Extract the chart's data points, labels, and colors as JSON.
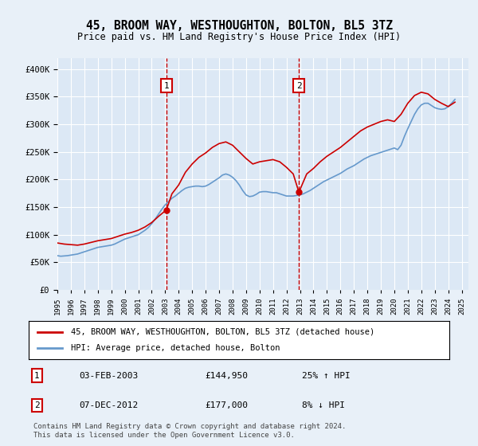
{
  "title": "45, BROOM WAY, WESTHOUGHTON, BOLTON, BL5 3TZ",
  "subtitle": "Price paid vs. HM Land Registry's House Price Index (HPI)",
  "ylabel_ticks": [
    "£0",
    "£50K",
    "£100K",
    "£150K",
    "£200K",
    "£250K",
    "£300K",
    "£350K",
    "£400K"
  ],
  "ytick_values": [
    0,
    50000,
    100000,
    150000,
    200000,
    250000,
    300000,
    350000,
    400000
  ],
  "ylim": [
    0,
    420000
  ],
  "xlim_start": 1995.0,
  "xlim_end": 2025.5,
  "background_color": "#e8f0f8",
  "plot_bg_color": "#dce8f5",
  "grid_color": "#ffffff",
  "marker1_x": 2003.09,
  "marker1_y": 144950,
  "marker1_label": "1",
  "marker1_date": "03-FEB-2003",
  "marker1_price": "£144,950",
  "marker1_hpi": "25% ↑ HPI",
  "marker2_x": 2012.92,
  "marker2_y": 177000,
  "marker2_label": "2",
  "marker2_date": "07-DEC-2012",
  "marker2_price": "£177,000",
  "marker2_hpi": "8% ↓ HPI",
  "red_line_color": "#cc0000",
  "blue_line_color": "#6699cc",
  "legend_label_red": "45, BROOM WAY, WESTHOUGHTON, BOLTON, BL5 3TZ (detached house)",
  "legend_label_blue": "HPI: Average price, detached house, Bolton",
  "footer_line1": "Contains HM Land Registry data © Crown copyright and database right 2024.",
  "footer_line2": "This data is licensed under the Open Government Licence v3.0.",
  "hpi_data": {
    "years": [
      1995.0,
      1995.25,
      1995.5,
      1995.75,
      1996.0,
      1996.25,
      1996.5,
      1996.75,
      1997.0,
      1997.25,
      1997.5,
      1997.75,
      1998.0,
      1998.25,
      1998.5,
      1998.75,
      1999.0,
      1999.25,
      1999.5,
      1999.75,
      2000.0,
      2000.25,
      2000.5,
      2000.75,
      2001.0,
      2001.25,
      2001.5,
      2001.75,
      2002.0,
      2002.25,
      2002.5,
      2002.75,
      2003.0,
      2003.25,
      2003.5,
      2003.75,
      2004.0,
      2004.25,
      2004.5,
      2004.75,
      2005.0,
      2005.25,
      2005.5,
      2005.75,
      2006.0,
      2006.25,
      2006.5,
      2006.75,
      2007.0,
      2007.25,
      2007.5,
      2007.75,
      2008.0,
      2008.25,
      2008.5,
      2008.75,
      2009.0,
      2009.25,
      2009.5,
      2009.75,
      2010.0,
      2010.25,
      2010.5,
      2010.75,
      2011.0,
      2011.25,
      2011.5,
      2011.75,
      2012.0,
      2012.25,
      2012.5,
      2012.75,
      2013.0,
      2013.25,
      2013.5,
      2013.75,
      2014.0,
      2014.25,
      2014.5,
      2014.75,
      2015.0,
      2015.25,
      2015.5,
      2015.75,
      2016.0,
      2016.25,
      2016.5,
      2016.75,
      2017.0,
      2017.25,
      2017.5,
      2017.75,
      2018.0,
      2018.25,
      2018.5,
      2018.75,
      2019.0,
      2019.25,
      2019.5,
      2019.75,
      2020.0,
      2020.25,
      2020.5,
      2020.75,
      2021.0,
      2021.25,
      2021.5,
      2021.75,
      2022.0,
      2022.25,
      2022.5,
      2022.75,
      2023.0,
      2023.25,
      2023.5,
      2023.75,
      2024.0,
      2024.25,
      2024.5
    ],
    "values": [
      62000,
      61000,
      61500,
      62000,
      63000,
      64000,
      65000,
      67000,
      69000,
      71000,
      73000,
      75000,
      77000,
      78000,
      79000,
      80000,
      81000,
      83000,
      86000,
      89000,
      92000,
      94000,
      96000,
      98000,
      100000,
      104000,
      108000,
      113000,
      120000,
      128000,
      137000,
      146000,
      154000,
      160000,
      166000,
      170000,
      175000,
      180000,
      184000,
      186000,
      187000,
      188000,
      188000,
      187000,
      188000,
      191000,
      195000,
      199000,
      203000,
      208000,
      210000,
      208000,
      204000,
      198000,
      190000,
      180000,
      172000,
      169000,
      170000,
      173000,
      177000,
      178000,
      178000,
      177000,
      176000,
      176000,
      174000,
      172000,
      170000,
      170000,
      170000,
      171000,
      172000,
      174000,
      177000,
      180000,
      184000,
      188000,
      192000,
      196000,
      199000,
      202000,
      205000,
      208000,
      211000,
      215000,
      219000,
      222000,
      225000,
      229000,
      233000,
      237000,
      240000,
      243000,
      245000,
      247000,
      249000,
      251000,
      253000,
      255000,
      257000,
      254000,
      262000,
      278000,
      292000,
      305000,
      318000,
      328000,
      335000,
      338000,
      338000,
      334000,
      330000,
      328000,
      327000,
      328000,
      332000,
      338000,
      345000
    ]
  },
  "red_data": {
    "years": [
      1995.0,
      1995.5,
      1996.0,
      1996.5,
      1997.0,
      1997.5,
      1998.0,
      1998.5,
      1999.0,
      1999.5,
      2000.0,
      2000.5,
      2001.0,
      2001.5,
      2002.0,
      2002.5,
      2003.09,
      2003.5,
      2004.0,
      2004.5,
      2005.0,
      2005.5,
      2006.0,
      2006.5,
      2007.0,
      2007.5,
      2008.0,
      2008.5,
      2009.0,
      2009.5,
      2010.0,
      2010.5,
      2011.0,
      2011.5,
      2012.0,
      2012.5,
      2012.92,
      2013.5,
      2014.0,
      2014.5,
      2015.0,
      2015.5,
      2016.0,
      2016.5,
      2017.0,
      2017.5,
      2018.0,
      2018.5,
      2019.0,
      2019.5,
      2020.0,
      2020.5,
      2021.0,
      2021.5,
      2022.0,
      2022.5,
      2023.0,
      2023.5,
      2024.0,
      2024.5
    ],
    "values": [
      85000,
      83000,
      82000,
      81000,
      83000,
      86000,
      89000,
      91000,
      93000,
      97000,
      101000,
      104000,
      108000,
      114000,
      122000,
      133000,
      144950,
      174000,
      190000,
      213000,
      228000,
      240000,
      248000,
      258000,
      265000,
      268000,
      262000,
      250000,
      238000,
      228000,
      232000,
      234000,
      236000,
      232000,
      222000,
      210000,
      177000,
      210000,
      220000,
      232000,
      242000,
      250000,
      258000,
      268000,
      278000,
      288000,
      295000,
      300000,
      305000,
      308000,
      305000,
      318000,
      338000,
      352000,
      358000,
      355000,
      345000,
      338000,
      332000,
      340000
    ]
  }
}
